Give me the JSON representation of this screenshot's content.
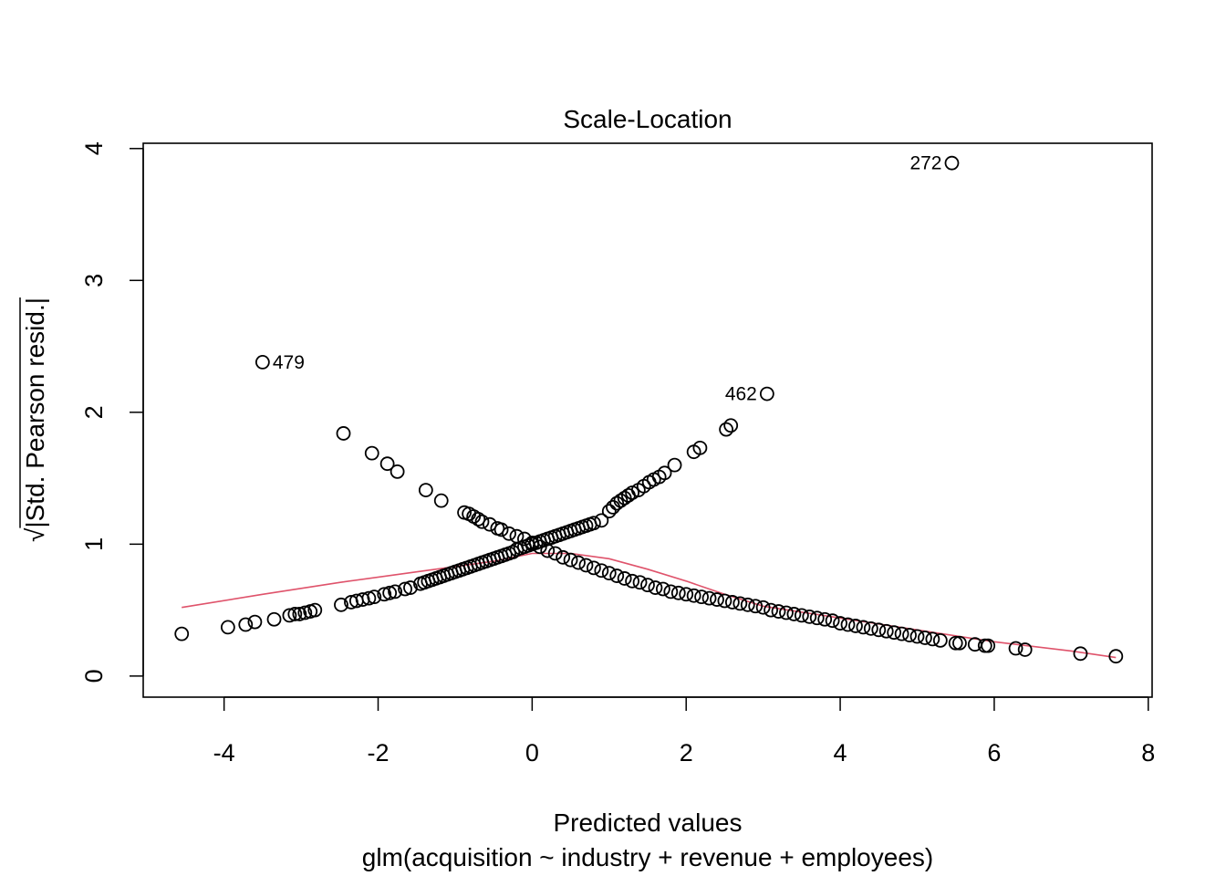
{
  "chart_data": {
    "type": "scatter",
    "title": "Scale-Location",
    "xlabel": "Predicted values",
    "subtitle": "glm(acquisition ~ industry + revenue + employees)",
    "ylabel_radical": "√",
    "ylabel_inner": "|Std. Pearson resid.|",
    "xlim": [
      -5.05,
      8.05
    ],
    "ylim": [
      -0.16,
      4.04
    ],
    "xticks": [
      "-4",
      "-2",
      "0",
      "2",
      "4",
      "6",
      "8"
    ],
    "xtick_values": [
      -4,
      -2,
      0,
      2,
      4,
      6,
      8
    ],
    "yticks": [
      "0",
      "1",
      "2",
      "3",
      "4"
    ],
    "ytick_values": [
      0,
      1,
      2,
      3,
      4
    ],
    "grid": false,
    "point_color": "#000000",
    "smooth_color": "#DF536B",
    "series": [
      {
        "points": [
          [
            -4.55,
            0.32
          ],
          [
            -3.95,
            0.37
          ],
          [
            -3.72,
            0.39
          ],
          [
            -3.6,
            0.41
          ],
          [
            -3.35,
            0.43
          ],
          [
            -3.15,
            0.46
          ],
          [
            -3.08,
            0.47
          ],
          [
            -3.02,
            0.47
          ],
          [
            -2.95,
            0.48
          ],
          [
            -2.88,
            0.49
          ],
          [
            -2.82,
            0.5
          ],
          [
            -2.48,
            0.54
          ],
          [
            -2.35,
            0.56
          ],
          [
            -2.28,
            0.57
          ],
          [
            -2.2,
            0.58
          ],
          [
            -2.12,
            0.59
          ],
          [
            -2.05,
            0.6
          ],
          [
            -1.92,
            0.62
          ],
          [
            -1.85,
            0.63
          ],
          [
            -1.78,
            0.64
          ],
          [
            -1.65,
            0.66
          ],
          [
            -1.58,
            0.67
          ],
          [
            -1.45,
            0.7
          ],
          [
            -1.4,
            0.71
          ],
          [
            -1.35,
            0.72
          ],
          [
            -1.3,
            0.73
          ],
          [
            -1.25,
            0.74
          ],
          [
            -1.2,
            0.75
          ],
          [
            -1.15,
            0.76
          ],
          [
            -1.1,
            0.77
          ],
          [
            -1.05,
            0.78
          ],
          [
            -1.0,
            0.79
          ],
          [
            -0.95,
            0.8
          ],
          [
            -0.9,
            0.81
          ],
          [
            -0.85,
            0.82
          ],
          [
            -0.8,
            0.83
          ],
          [
            -0.75,
            0.84
          ],
          [
            -0.7,
            0.85
          ],
          [
            -0.65,
            0.86
          ],
          [
            -0.6,
            0.87
          ],
          [
            -0.55,
            0.88
          ],
          [
            -0.5,
            0.89
          ],
          [
            -0.45,
            0.9
          ],
          [
            -0.4,
            0.91
          ],
          [
            -0.35,
            0.92
          ],
          [
            -0.3,
            0.93
          ],
          [
            -0.25,
            0.94
          ],
          [
            -0.2,
            0.96
          ],
          [
            -0.15,
            0.97
          ],
          [
            -0.1,
            0.98
          ],
          [
            -0.05,
            0.99
          ],
          [
            0.0,
            1.0
          ],
          [
            0.05,
            1.01
          ],
          [
            0.1,
            1.02
          ],
          [
            0.15,
            1.03
          ],
          [
            0.2,
            1.04
          ],
          [
            0.25,
            1.05
          ],
          [
            0.3,
            1.06
          ],
          [
            0.35,
            1.07
          ],
          [
            0.4,
            1.08
          ],
          [
            0.45,
            1.09
          ],
          [
            0.5,
            1.1
          ],
          [
            0.55,
            1.11
          ],
          [
            0.6,
            1.12
          ],
          [
            0.65,
            1.13
          ],
          [
            0.7,
            1.14
          ],
          [
            0.75,
            1.15
          ],
          [
            0.8,
            1.16
          ],
          [
            0.9,
            1.18
          ],
          [
            1.0,
            1.25
          ],
          [
            1.05,
            1.28
          ],
          [
            1.1,
            1.31
          ],
          [
            1.15,
            1.33
          ],
          [
            1.2,
            1.35
          ],
          [
            1.25,
            1.37
          ],
          [
            1.3,
            1.39
          ],
          [
            1.38,
            1.41
          ],
          [
            1.45,
            1.44
          ],
          [
            1.52,
            1.47
          ],
          [
            1.58,
            1.49
          ],
          [
            1.65,
            1.51
          ],
          [
            1.72,
            1.54
          ],
          [
            1.85,
            1.6
          ],
          [
            2.1,
            1.7
          ],
          [
            2.18,
            1.73
          ],
          [
            2.52,
            1.87
          ],
          [
            2.58,
            1.9
          ],
          [
            3.05,
            2.14
          ],
          [
            5.45,
            3.89
          ],
          [
            -3.5,
            2.38
          ],
          [
            -2.45,
            1.84
          ],
          [
            -2.08,
            1.69
          ],
          [
            -1.88,
            1.61
          ],
          [
            -1.75,
            1.55
          ],
          [
            -1.38,
            1.41
          ],
          [
            -1.18,
            1.33
          ],
          [
            -0.88,
            1.24
          ],
          [
            -0.82,
            1.23
          ],
          [
            -0.76,
            1.21
          ],
          [
            -0.7,
            1.19
          ],
          [
            -0.65,
            1.17
          ],
          [
            -0.55,
            1.15
          ],
          [
            -0.45,
            1.12
          ],
          [
            -0.4,
            1.11
          ],
          [
            -0.3,
            1.08
          ],
          [
            -0.2,
            1.06
          ],
          [
            -0.1,
            1.04
          ],
          [
            0.0,
            1.01
          ],
          [
            0.1,
            0.98
          ],
          [
            0.2,
            0.95
          ],
          [
            0.3,
            0.93
          ],
          [
            0.4,
            0.9
          ],
          [
            0.5,
            0.88
          ],
          [
            0.6,
            0.86
          ],
          [
            0.7,
            0.84
          ],
          [
            0.8,
            0.82
          ],
          [
            0.9,
            0.8
          ],
          [
            1.0,
            0.78
          ],
          [
            1.1,
            0.76
          ],
          [
            1.2,
            0.74
          ],
          [
            1.3,
            0.72
          ],
          [
            1.4,
            0.71
          ],
          [
            1.5,
            0.69
          ],
          [
            1.6,
            0.67
          ],
          [
            1.7,
            0.66
          ],
          [
            1.8,
            0.64
          ],
          [
            1.9,
            0.63
          ],
          [
            2.0,
            0.62
          ],
          [
            2.1,
            0.61
          ],
          [
            2.2,
            0.6
          ],
          [
            2.3,
            0.59
          ],
          [
            2.4,
            0.58
          ],
          [
            2.5,
            0.57
          ],
          [
            2.6,
            0.56
          ],
          [
            2.7,
            0.55
          ],
          [
            2.8,
            0.54
          ],
          [
            2.9,
            0.53
          ],
          [
            3.0,
            0.52
          ],
          [
            3.1,
            0.5
          ],
          [
            3.2,
            0.49
          ],
          [
            3.3,
            0.48
          ],
          [
            3.4,
            0.47
          ],
          [
            3.5,
            0.46
          ],
          [
            3.6,
            0.45
          ],
          [
            3.7,
            0.44
          ],
          [
            3.8,
            0.43
          ],
          [
            3.9,
            0.42
          ],
          [
            4.0,
            0.4
          ],
          [
            4.1,
            0.39
          ],
          [
            4.2,
            0.38
          ],
          [
            4.3,
            0.37
          ],
          [
            4.4,
            0.36
          ],
          [
            4.5,
            0.35
          ],
          [
            4.6,
            0.34
          ],
          [
            4.7,
            0.33
          ],
          [
            4.8,
            0.32
          ],
          [
            4.9,
            0.31
          ],
          [
            5.0,
            0.3
          ],
          [
            5.1,
            0.29
          ],
          [
            5.2,
            0.28
          ],
          [
            5.3,
            0.27
          ],
          [
            5.5,
            0.25
          ],
          [
            5.55,
            0.25
          ],
          [
            5.75,
            0.24
          ],
          [
            5.88,
            0.23
          ],
          [
            5.92,
            0.23
          ],
          [
            6.28,
            0.21
          ],
          [
            6.4,
            0.2
          ],
          [
            7.12,
            0.17
          ],
          [
            7.58,
            0.15
          ]
        ]
      }
    ],
    "smooth": [
      [
        -4.55,
        0.52
      ],
      [
        -3.5,
        0.62
      ],
      [
        -2.5,
        0.71
      ],
      [
        -1.5,
        0.79
      ],
      [
        -0.5,
        0.87
      ],
      [
        0.0,
        0.93
      ],
      [
        0.5,
        0.93
      ],
      [
        1.0,
        0.89
      ],
      [
        1.5,
        0.81
      ],
      [
        2.0,
        0.72
      ],
      [
        2.5,
        0.62
      ],
      [
        3.0,
        0.53
      ],
      [
        4.0,
        0.44
      ],
      [
        5.0,
        0.35
      ],
      [
        6.0,
        0.26
      ],
      [
        7.0,
        0.19
      ],
      [
        7.58,
        0.14
      ]
    ],
    "annotations": [
      {
        "text": "272",
        "x": 5.45,
        "y": 3.89,
        "side": "left"
      },
      {
        "text": "479",
        "x": -3.5,
        "y": 2.38,
        "side": "right"
      },
      {
        "text": "462",
        "x": 3.05,
        "y": 2.14,
        "side": "left"
      }
    ]
  }
}
